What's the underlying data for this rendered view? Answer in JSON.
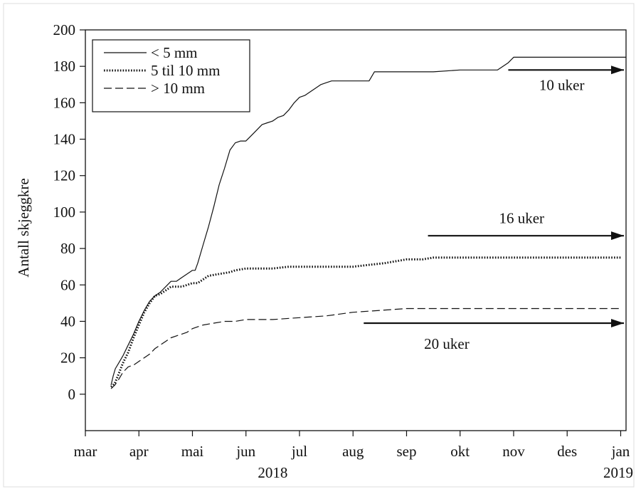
{
  "chart_data": {
    "type": "line",
    "ylabel": "Antall skjeggkre",
    "ylim": [
      -20,
      200
    ],
    "y_ticks": [
      0,
      20,
      40,
      60,
      80,
      100,
      120,
      140,
      160,
      180,
      200
    ],
    "x_unit": "month (2018-03 = 0)",
    "xlim": [
      0,
      10.1
    ],
    "x_ticks": [
      {
        "label": "mar",
        "x": 0
      },
      {
        "label": "apr",
        "x": 1
      },
      {
        "label": "mai",
        "x": 2
      },
      {
        "label": "jun",
        "x": 3
      },
      {
        "label": "jul",
        "x": 4
      },
      {
        "label": "aug",
        "x": 5
      },
      {
        "label": "sep",
        "x": 6
      },
      {
        "label": "okt",
        "x": 7
      },
      {
        "label": "nov",
        "x": 8
      },
      {
        "label": "des",
        "x": 9
      },
      {
        "label": "jan",
        "x": 10
      }
    ],
    "year_labels": [
      {
        "label": "2018",
        "x": 3.5
      },
      {
        "label": "2019",
        "x": 10
      }
    ],
    "legend": {
      "position": "top-left",
      "entries": [
        {
          "label": "< 5 mm",
          "style": "solid"
        },
        {
          "label": "5 til 10 mm",
          "style": "dotted"
        },
        {
          "label": "> 10 mm",
          "style": "dashed"
        }
      ]
    },
    "series": [
      {
        "name": "< 5 mm",
        "style": "solid",
        "x": [
          0.48,
          0.52,
          0.56,
          0.62,
          0.7,
          0.8,
          0.9,
          1.0,
          1.1,
          1.2,
          1.3,
          1.4,
          1.5,
          1.6,
          1.7,
          1.8,
          1.9,
          2.0,
          2.05,
          2.1,
          2.2,
          2.3,
          2.4,
          2.5,
          2.6,
          2.7,
          2.8,
          2.9,
          3.0,
          3.1,
          3.2,
          3.3,
          3.4,
          3.5,
          3.6,
          3.7,
          3.8,
          3.9,
          4.0,
          4.1,
          4.2,
          4.3,
          4.4,
          4.5,
          4.6,
          4.7,
          4.8,
          4.9,
          5.0,
          5.1,
          5.2,
          5.3,
          5.4,
          5.5,
          5.6,
          5.7,
          5.8,
          6.0,
          6.5,
          7.0,
          7.5,
          7.7,
          7.8,
          7.9,
          8.0,
          8.3,
          8.6,
          9.0,
          9.5,
          10.0,
          10.1
        ],
        "values": [
          5,
          10,
          14,
          17,
          21,
          27,
          33,
          40,
          46,
          51,
          54,
          56,
          59,
          62,
          62,
          64,
          66,
          68,
          68,
          72,
          82,
          92,
          103,
          115,
          124,
          134,
          138,
          139,
          139,
          142,
          145,
          148,
          149,
          150,
          152,
          153,
          156,
          160,
          163,
          164,
          166,
          168,
          170,
          171,
          172,
          172,
          172,
          172,
          172,
          172,
          172,
          172,
          177,
          177,
          177,
          177,
          177,
          177,
          177,
          178,
          178,
          178,
          180,
          182,
          185,
          185,
          185,
          185,
          185,
          185,
          185
        ]
      },
      {
        "name": "5 til 10 mm",
        "style": "dotted",
        "x": [
          0.48,
          0.55,
          0.62,
          0.7,
          0.8,
          0.9,
          1.0,
          1.1,
          1.2,
          1.3,
          1.4,
          1.5,
          1.6,
          1.7,
          1.8,
          1.9,
          2.0,
          2.1,
          2.2,
          2.3,
          2.5,
          2.7,
          2.8,
          3.0,
          3.2,
          3.5,
          3.8,
          4.0,
          4.5,
          5.0,
          5.3,
          5.6,
          6.0,
          6.3,
          6.5,
          7.0,
          8.0,
          9.0,
          10.0
        ],
        "values": [
          4,
          6,
          11,
          17,
          23,
          31,
          38,
          45,
          50,
          54,
          55,
          57,
          59,
          59,
          59,
          60,
          61,
          61,
          63,
          65,
          66,
          67,
          68,
          69,
          69,
          69,
          70,
          70,
          70,
          70,
          71,
          72,
          74,
          74,
          75,
          75,
          75,
          75,
          75
        ]
      },
      {
        "name": "> 10 mm",
        "style": "dashed",
        "x": [
          0.48,
          0.55,
          0.62,
          0.7,
          0.8,
          0.9,
          1.0,
          1.1,
          1.2,
          1.3,
          1.4,
          1.5,
          1.6,
          1.7,
          1.8,
          1.9,
          2.0,
          2.1,
          2.2,
          2.4,
          2.6,
          2.8,
          3.0,
          3.5,
          4.0,
          4.5,
          5.0,
          5.5,
          6.0,
          7.0,
          8.0,
          9.0,
          10.0
        ],
        "values": [
          3,
          5,
          8,
          12,
          15,
          16,
          18,
          20,
          22,
          25,
          27,
          29,
          31,
          32,
          33,
          34,
          36,
          37,
          38,
          39,
          40,
          40,
          41,
          41,
          42,
          43,
          45,
          46,
          47,
          47,
          47,
          47,
          47
        ]
      }
    ],
    "annotations": [
      {
        "text": "10 uker",
        "arrow_from_x": 7.9,
        "arrow_to_x": 10.1,
        "y": 178,
        "text_x": 8.9,
        "text_y": 167
      },
      {
        "text": "16 uker",
        "arrow_from_x": 6.4,
        "arrow_to_x": 10.1,
        "y": 87,
        "text_x": 8.15,
        "text_y": 94
      },
      {
        "text": "20 uker",
        "arrow_from_x": 5.2,
        "arrow_to_x": 10.1,
        "y": 39,
        "text_x": 6.75,
        "text_y": 25
      }
    ]
  }
}
